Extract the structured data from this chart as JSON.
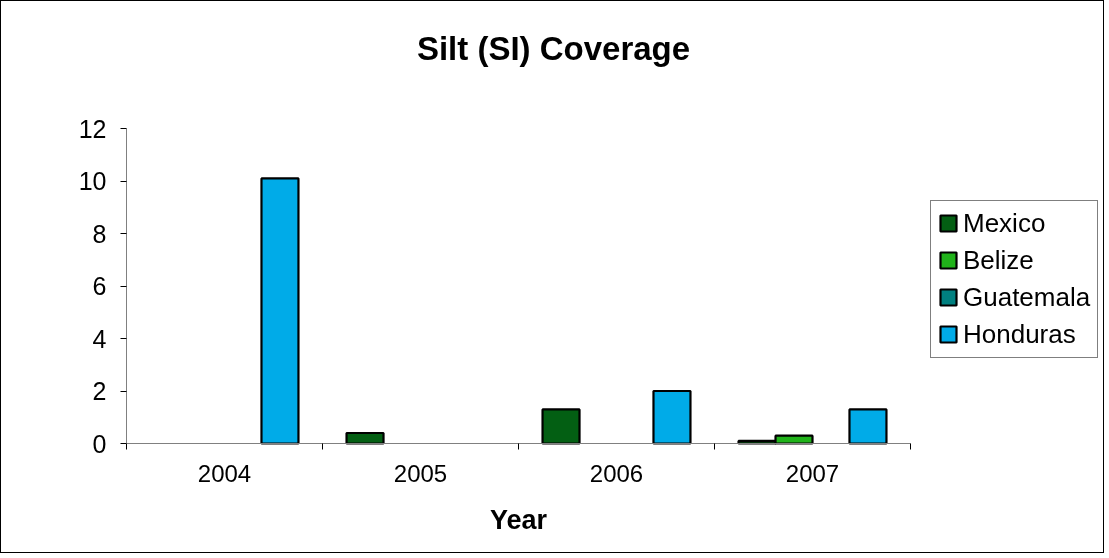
{
  "chart_data": {
    "type": "bar",
    "title": "Silt (SI) Coverage",
    "xlabel": "Year",
    "categories": [
      "2004",
      "2005",
      "2006",
      "2007"
    ],
    "series": [
      {
        "name": "Mexico",
        "color": "#035f13",
        "values": [
          null,
          0.4,
          1.3,
          0.1
        ]
      },
      {
        "name": "Belize",
        "color": "#20b31a",
        "values": [
          null,
          null,
          null,
          0.3
        ]
      },
      {
        "name": "Guatemala",
        "color": "#008080",
        "values": [
          null,
          null,
          null,
          null
        ]
      },
      {
        "name": "Honduras",
        "color": "#00abe8",
        "values": [
          10.1,
          null,
          2.0,
          1.3
        ]
      }
    ],
    "ylim": [
      0,
      12
    ],
    "yticks": [
      0,
      2,
      4,
      6,
      8,
      10,
      12
    ],
    "legend": "right"
  }
}
